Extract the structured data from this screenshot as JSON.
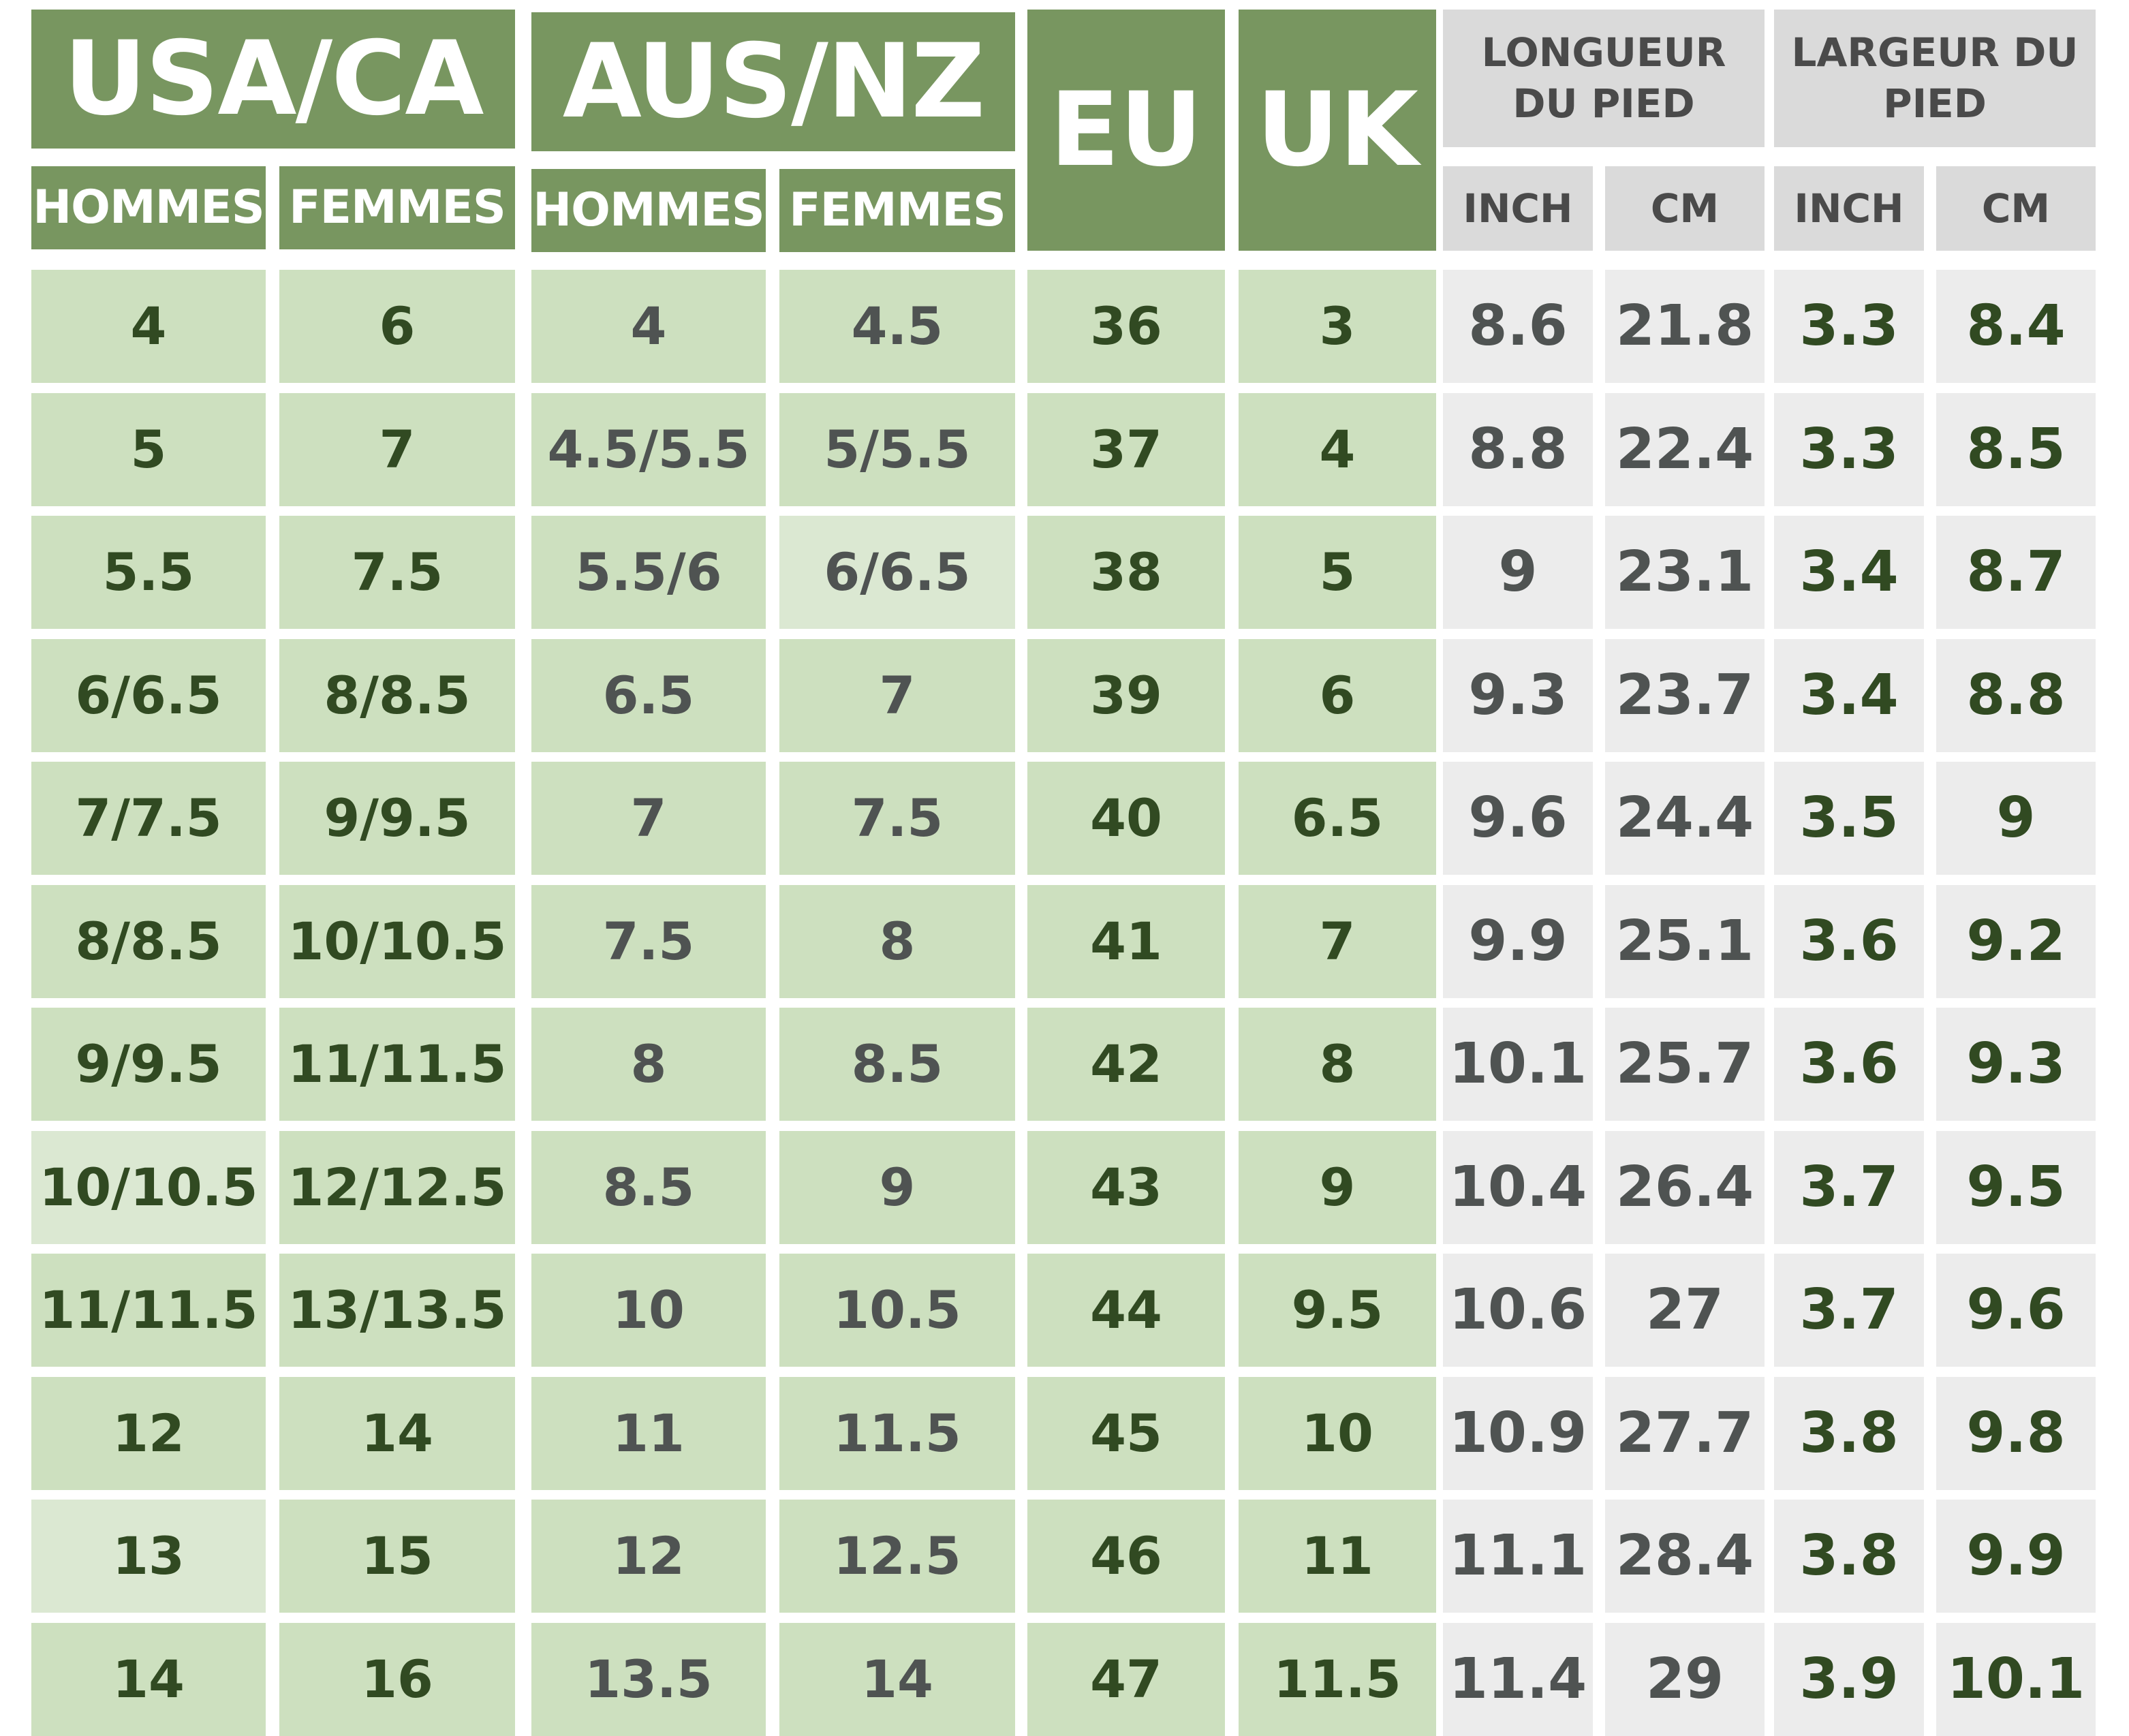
{
  "table": {
    "headers": {
      "usa_ca": "USA/CA",
      "aus_nz": "AUS/NZ",
      "eu": "EU",
      "uk": "UK",
      "longueur": "LONGUEUR DU PIED",
      "largeur": "LARGEUR DU PIED",
      "hommes": "HOMMES",
      "femmes": "FEMMES",
      "inch": "INCH",
      "cm": "CM"
    },
    "rows": [
      [
        "4",
        "6",
        "4",
        "4.5",
        "36",
        "3",
        "8.6",
        "21.8",
        "3.3",
        "8.4"
      ],
      [
        "5",
        "7",
        "4.5/5.5",
        "5/5.5",
        "37",
        "4",
        "8.8",
        "22.4",
        "3.3",
        "8.5"
      ],
      [
        "5.5",
        "7.5",
        "5.5/6",
        "6/6.5",
        "38",
        "5",
        "9",
        "23.1",
        "3.4",
        "8.7"
      ],
      [
        "6/6.5",
        "8/8.5",
        "6.5",
        "7",
        "39",
        "6",
        "9.3",
        "23.7",
        "3.4",
        "8.8"
      ],
      [
        "7/7.5",
        "9/9.5",
        "7",
        "7.5",
        "40",
        "6.5",
        "9.6",
        "24.4",
        "3.5",
        "9"
      ],
      [
        "8/8.5",
        "10/10.5",
        "7.5",
        "8",
        "41",
        "7",
        "9.9",
        "25.1",
        "3.6",
        "9.2"
      ],
      [
        "9/9.5",
        "11/11.5",
        "8",
        "8.5",
        "42",
        "8",
        "10.1",
        "25.7",
        "3.6",
        "9.3"
      ],
      [
        "10/10.5",
        "12/12.5",
        "8.5",
        "9",
        "43",
        "9",
        "10.4",
        "26.4",
        "3.7",
        "9.5"
      ],
      [
        "11/11.5",
        "13/13.5",
        "10",
        "10.5",
        "44",
        "9.5",
        "10.6",
        "27",
        "3.7",
        "9.6"
      ],
      [
        "12",
        "14",
        "11",
        "11.5",
        "45",
        "10",
        "10.9",
        "27.7",
        "3.8",
        "9.8"
      ],
      [
        "13",
        "15",
        "12",
        "12.5",
        "46",
        "11",
        "11.1",
        "28.4",
        "3.8",
        "9.9"
      ],
      [
        "14",
        "16",
        "13.5",
        "14",
        "47",
        "11.5",
        "11.4",
        "29",
        "3.9",
        "10.1"
      ]
    ]
  },
  "colors": {
    "header_green": "#789660",
    "cell_green": "#cde0bf",
    "cell_green_light": "#dbe8d2",
    "header_grey": "#dadada",
    "cell_grey": "#ececec",
    "text_dark_green": "#314a22",
    "text_grey": "#4f5352"
  }
}
